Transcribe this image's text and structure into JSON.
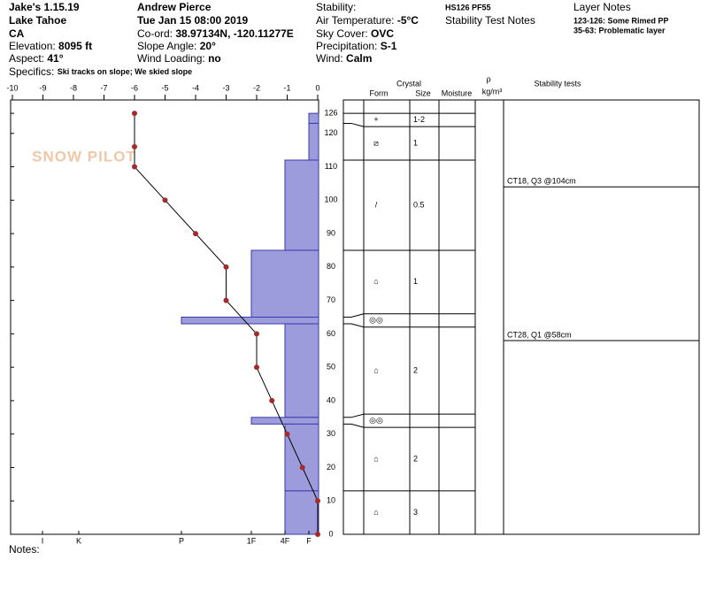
{
  "header": {
    "col1": [
      {
        "value": "Jake's 1.15.19"
      },
      {
        "value": "Lake Tahoe"
      },
      {
        "value": "CA"
      },
      {
        "label": "Elevation:",
        "value": "8095 ft"
      },
      {
        "label": "Aspect:",
        "value": "41°"
      }
    ],
    "specifics": {
      "label": "Specifics:",
      "value": "Ski tracks on slope; We skied slope"
    },
    "col2": [
      {
        "value": "Andrew Pierce"
      },
      {
        "value": "Tue Jan 15 08:00 2019"
      },
      {
        "label": "Co-ord:",
        "value": "38.97134N, -120.11277E"
      },
      {
        "label": "Slope Angle:",
        "value": "20°"
      },
      {
        "label": "Wind Loading:",
        "value": "no"
      }
    ],
    "col3": [
      {
        "label": "Stability:"
      },
      {
        "label": "Air Temperature:",
        "value": "-5°C"
      },
      {
        "label": "Sky Cover:",
        "value": "OVC"
      },
      {
        "label": "Precipitation:",
        "value": "S-1"
      },
      {
        "label": "Wind:",
        "value": "Calm"
      }
    ],
    "col4": {
      "summary": "HS126 PF55",
      "title": "Stability Test Notes"
    },
    "col5": {
      "title": "Layer Notes",
      "notes": [
        "123-126: Some Rimed PP",
        "35-63: Problematic layer"
      ]
    }
  },
  "watermark": "SNOW PILOT",
  "chart_data": {
    "type": "snow_profile",
    "xlim": [
      -10,
      0
    ],
    "xticks": [
      -10,
      -9,
      -8,
      -7,
      -6,
      -5,
      -4,
      -3,
      -2,
      -1,
      0
    ],
    "ylim": [
      0,
      130
    ],
    "yticks": [
      0,
      10,
      20,
      30,
      40,
      50,
      60,
      70,
      80,
      90,
      100,
      110,
      120,
      126
    ],
    "hardness_scale": [
      "I",
      "K",
      "P",
      "1F",
      "4F",
      "F"
    ],
    "temperature": {
      "color": "#a52a2a",
      "heights": [
        126,
        116,
        110,
        100,
        90,
        80,
        70,
        60,
        50,
        40,
        30,
        20,
        10,
        0
      ],
      "values": [
        -6,
        -6,
        -6,
        -5,
        -4,
        -3,
        -3,
        -2,
        -2,
        -1.5,
        -1,
        -0.5,
        0,
        0
      ]
    },
    "hardness_color": "#9c9cdc",
    "layers": [
      {
        "top": 126,
        "bottom": 123,
        "hardness": "F",
        "form": "+",
        "size": "1-2"
      },
      {
        "top": 123,
        "bottom": 112,
        "hardness": "F",
        "form": "⧄",
        "size": "1"
      },
      {
        "top": 112,
        "bottom": 85,
        "hardness": "4F",
        "form": "/",
        "size": "0.5"
      },
      {
        "top": 85,
        "bottom": 65,
        "hardness": "1F",
        "form": "⌂",
        "size": "1"
      },
      {
        "top": 65,
        "bottom": 63,
        "hardness": "P",
        "form": "◎◎",
        "size": null
      },
      {
        "top": 63,
        "bottom": 35,
        "hardness": "4F",
        "form": "⌂",
        "size": "2"
      },
      {
        "top": 35,
        "bottom": 33,
        "hardness": "1F",
        "form": "◎◎",
        "size": null
      },
      {
        "top": 33,
        "bottom": 13,
        "hardness": "4F",
        "form": "⌂",
        "size": "2"
      },
      {
        "top": 13,
        "bottom": 0,
        "hardness": "4F",
        "form": "⌂",
        "size": "3"
      }
    ],
    "columns": {
      "crystal": "Crystal",
      "form": "Form",
      "size": "Size",
      "moisture": "Moisture",
      "rho": "ρ",
      "density_unit": "kg/m³",
      "stability": "Stability tests"
    },
    "stability_tests": [
      {
        "label": "CT18, Q3 @104cm",
        "height": 104
      },
      {
        "label": "CT28, Q1 @58cm",
        "height": 58
      }
    ]
  },
  "notes": "Notes:"
}
